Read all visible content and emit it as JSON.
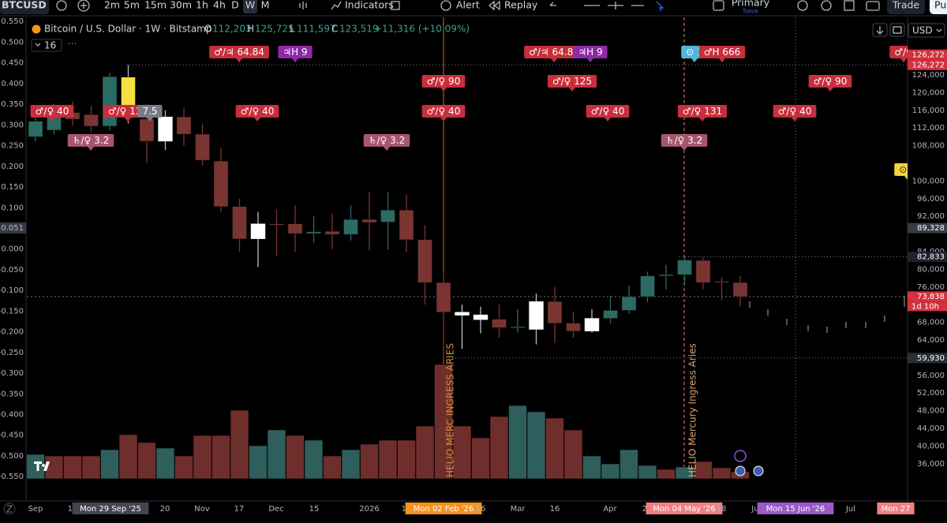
{
  "toolbar": {
    "symbol": "BTCUSD",
    "intervals": [
      "2m",
      "5m",
      "15m",
      "30m",
      "1h",
      "4h",
      "D",
      "W",
      "M"
    ],
    "active_interval": 7,
    "indicators": "Indicators",
    "alert": "Alert",
    "replay": "Replay",
    "layout": "Primary",
    "save": "Save",
    "trade": "Trade",
    "publish": "Pu"
  },
  "legend": {
    "title": "Bitcoin / U.S. Dollar · 1W · Bitstamp",
    "o_label": "O",
    "open": "112,203",
    "h_label": "H",
    "high": "125,725",
    "l_label": "L",
    "low": "111,597",
    "c_label": "C",
    "close": "123,519",
    "change": "+11,316 (+10.09%)",
    "indicator_length": "16"
  },
  "currency": "USD",
  "price_axis": {
    "ylim": [
      27929,
      137036
    ],
    "ticks": [
      {
        "value": 124000,
        "label": "124,000"
      },
      {
        "value": 120000,
        "label": "120,000"
      },
      {
        "value": 116000,
        "label": "116,000"
      },
      {
        "value": 112000,
        "label": "112,000"
      },
      {
        "value": 108000,
        "label": "108,000"
      },
      {
        "value": 100000,
        "label": "100,000"
      },
      {
        "value": 96000,
        "label": "96,000"
      },
      {
        "value": 92000,
        "label": "92,000"
      },
      {
        "value": 84000,
        "label": "84,000"
      },
      {
        "value": 80000,
        "label": "80,000"
      },
      {
        "value": 76000,
        "label": "76,000"
      },
      {
        "value": 68000,
        "label": "68,000"
      },
      {
        "value": 64000,
        "label": "64,000"
      },
      {
        "value": 56000,
        "label": "56,000"
      },
      {
        "value": 52000,
        "label": "52,000"
      },
      {
        "value": 48000,
        "label": "48,000"
      },
      {
        "value": 44000,
        "label": "44,000"
      },
      {
        "value": 40000,
        "label": "40,000"
      },
      {
        "value": 36000,
        "label": "36,000"
      }
    ],
    "badges": [
      {
        "value": 126272,
        "label": "126,272",
        "color": "#d3323f"
      },
      {
        "value": 126272,
        "label": "126,272",
        "color": "#d3323f"
      },
      {
        "value": 89328,
        "label": "89,328",
        "color": "#363a45"
      },
      {
        "value": 82833,
        "label": "82,833",
        "color": "#1e222d"
      },
      {
        "value": 73838,
        "label": "73,838",
        "color": "#d3323f"
      },
      {
        "value": 59930,
        "label": "59,930",
        "color": "#2a2e39"
      }
    ],
    "countdown": "1d 10h"
  },
  "indicator_axis": {
    "ylim": [
      -0.605,
      0.56
    ],
    "ticks": [
      {
        "value": 0.55,
        "label": "0.550"
      },
      {
        "value": 0.5,
        "label": "0.500"
      },
      {
        "value": 0.45,
        "label": "0.450"
      },
      {
        "value": 0.4,
        "label": "0.400"
      },
      {
        "value": 0.35,
        "label": "0.350"
      },
      {
        "value": 0.3,
        "label": "0.300"
      },
      {
        "value": 0.25,
        "label": "0.250"
      },
      {
        "value": 0.2,
        "label": "0.200"
      },
      {
        "value": 0.15,
        "label": "0.150"
      },
      {
        "value": 0.1,
        "label": "0.100"
      },
      {
        "value": 0,
        "label": "0.000"
      },
      {
        "value": -0.05,
        "label": "-0.050"
      },
      {
        "value": -0.1,
        "label": "-0.100"
      },
      {
        "value": -0.15,
        "label": "-0.150"
      },
      {
        "value": -0.2,
        "label": "-0.200"
      },
      {
        "value": -0.25,
        "label": "-0.250"
      },
      {
        "value": -0.3,
        "label": "-0.300"
      },
      {
        "value": -0.35,
        "label": "-0.350"
      },
      {
        "value": -0.4,
        "label": "-0.400"
      },
      {
        "value": -0.45,
        "label": "-0.450"
      },
      {
        "value": -0.5,
        "label": "-0.500"
      },
      {
        "value": -0.55,
        "label": "-0.550"
      }
    ],
    "badge": {
      "value": 0.051,
      "label": "0.051"
    }
  },
  "candles": {
    "open": [
      110000,
      111500,
      115500,
      115000,
      112400,
      123500,
      114000,
      109000,
      114500,
      110600,
      104500,
      94200,
      86900,
      90300,
      90300,
      88100,
      88600,
      87900,
      91300,
      90700,
      93400,
      86700,
      77000,
      69600,
      68600,
      68700,
      66800,
      66400,
      72700,
      67800,
      66000,
      68900,
      70700,
      73800,
      78500,
      78800,
      82000,
      77300,
      77000
    ],
    "high": [
      116000,
      117500,
      118000,
      117000,
      124500,
      126272,
      117500,
      116000,
      116500,
      113000,
      107500,
      96000,
      93000,
      93500,
      94500,
      92000,
      92500,
      94500,
      97500,
      97600,
      97000,
      90000,
      79500,
      72000,
      71500,
      72000,
      71000,
      74500,
      76000,
      70500,
      71000,
      74000,
      76400,
      79500,
      81000,
      82800,
      82833,
      78200,
      78500
    ],
    "low": [
      109000,
      110500,
      112500,
      111000,
      111500,
      113000,
      104000,
      107000,
      108000,
      103500,
      93000,
      84000,
      80500,
      83000,
      84000,
      86000,
      84500,
      86500,
      84300,
      84500,
      84000,
      72000,
      59930,
      62000,
      65500,
      64500,
      65700,
      63000,
      63300,
      64500,
      65700,
      67700,
      70000,
      72500,
      75500,
      76500,
      75500,
      73000,
      71700
    ],
    "close": [
      113500,
      115500,
      114000,
      112400,
      123600,
      115000,
      109000,
      114500,
      110600,
      104700,
      94200,
      86900,
      90300,
      90200,
      88100,
      88500,
      87900,
      91300,
      90600,
      93400,
      86700,
      77000,
      70300,
      70300,
      69700,
      66800,
      67000,
      72700,
      67800,
      66000,
      68900,
      70700,
      73800,
      78500,
      78800,
      82100,
      77000,
      77100,
      73838
    ],
    "colors": [
      "#2b6b63",
      "#2b6b63",
      "#7a3431",
      "#7a3431",
      "#2b6b63",
      "#f5e042",
      "#7a3431",
      "#ffffff",
      "#7a3431",
      "#7a3431",
      "#7a3431",
      "#7a3431",
      "#ffffff",
      "#7a3431",
      "#7a3431",
      "#2b6b63",
      "#7a3431",
      "#2b6b63",
      "#7a3431",
      "#2b6b63",
      "#7a3431",
      "#7a3431",
      "#7a3431",
      "#ffffff",
      "#ffffff",
      "#7a3431",
      "#2b6b63",
      "#ffffff",
      "#7a3431",
      "#7a3431",
      "#ffffff",
      "#2b6b63",
      "#2b6b63",
      "#2b6b63",
      "#2b6b63",
      "#2b6b63",
      "#7a3431",
      "#7a3431",
      "#7a3431"
    ]
  },
  "volume": {
    "vlim": [
      0,
      150
    ],
    "values": [
      31,
      29,
      29,
      29,
      37,
      56,
      46,
      39,
      29,
      55,
      55,
      87,
      42,
      62,
      55,
      49,
      29,
      37,
      44,
      49,
      49,
      67,
      145,
      67,
      52,
      79,
      93,
      85,
      77,
      62,
      29,
      19,
      37,
      17,
      12,
      15,
      22,
      14,
      9
    ],
    "colors": [
      "#2f5f5c",
      "#6e2e2c",
      "#6e2e2c",
      "#6e2e2c",
      "#2f5f5c",
      "#6e2e2c",
      "#6e2e2c",
      "#2f5f5c",
      "#6e2e2c",
      "#6e2e2c",
      "#6e2e2c",
      "#6e2e2c",
      "#2f5f5c",
      "#2f5f5c",
      "#6e2e2c",
      "#2f5f5c",
      "#6e2e2c",
      "#2f5f5c",
      "#6e2e2c",
      "#6e2e2c",
      "#6e2e2c",
      "#6e2e2c",
      "#6e2e2c",
      "#6e2e2c",
      "#6e2e2c",
      "#6e2e2c",
      "#2f5f5c",
      "#2f5f5c",
      "#6e2e2c",
      "#6e2e2c",
      "#2f5f5c",
      "#2f5f5c",
      "#2f5f5c",
      "#2f5f5c",
      "#6e2e2c",
      "#2f5f5c",
      "#6e2e2c",
      "#6e2e2c",
      "#6e2e2c"
    ]
  },
  "time_axis": [
    {
      "label": "Sep"
    },
    {
      "label": "15"
    },
    {
      "label": "Mon 29 Sep '25",
      "color": "#434651"
    },
    {
      "label": "20"
    },
    {
      "label": "Nov"
    },
    {
      "label": "17"
    },
    {
      "label": "Dec"
    },
    {
      "label": "15"
    },
    {
      "label": "2026"
    },
    {
      "label": "19"
    },
    {
      "label": "Mon 02 Feb '26",
      "color": "#f7931a"
    },
    {
      "label": "16"
    },
    {
      "label": "Mar"
    },
    {
      "label": "16"
    },
    {
      "label": "Apr"
    },
    {
      "label": "20"
    },
    {
      "label": "Mon 04 May '26",
      "color": "#f08080"
    },
    {
      "label": "18"
    },
    {
      "label": "Jun"
    },
    {
      "label": "Mon 15 Jun '26",
      "color": "#9c59c8"
    },
    {
      "label": "Jul"
    },
    {
      "label": "Mon 27",
      "color": "#f08080"
    }
  ],
  "annotations": [
    {
      "text": "♂/♀ 40",
      "color": "#c62f3b"
    },
    {
      "text": "♂/♀ 131",
      "color": "#c62f3b"
    },
    {
      "text": "7.5",
      "color": "#787b86"
    },
    {
      "text": "♄/♀ 3.2",
      "color": "#a8566e"
    },
    {
      "text": "♂/♃ 64.84",
      "color": "#c62f3b"
    },
    {
      "text": "♃H 9",
      "color": "#8e2aa8"
    },
    {
      "text": "♂/♀ 40",
      "color": "#c62f3b"
    },
    {
      "text": "♄/♀ 3.2",
      "color": "#a8566e"
    },
    {
      "text": "♂/♀ 90",
      "color": "#c62f3b"
    },
    {
      "text": "♂/♀ 40",
      "color": "#c62f3b"
    },
    {
      "text": "♂/♃ 64.84",
      "color": "#c62f3b"
    },
    {
      "text": "♃H 9",
      "color": "#8e2aa8"
    },
    {
      "text": "♂/♀ 125",
      "color": "#c62f3b"
    },
    {
      "text": "♂/♀ 40",
      "color": "#c62f3b"
    },
    {
      "text": "⊙ 1",
      "color": "#4fb8dc"
    },
    {
      "text": "♂H 666",
      "color": "#c62f3b"
    },
    {
      "text": "♂/♀ 131",
      "color": "#c62f3b"
    },
    {
      "text": "♄/♀ 3.2",
      "color": "#a8566e"
    },
    {
      "text": "♂/♀ 40",
      "color": "#c62f3b"
    },
    {
      "text": "♂/♀ 90",
      "color": "#c62f3b"
    },
    {
      "text": "♂/♀",
      "color": "#c62f3b"
    },
    {
      "text": "⊙ 0",
      "color": "#f5d23a"
    }
  ],
  "event_labels": [
    "HELIO MERC INGRESS ARIES",
    "HELIO Mercury Ingress Aries"
  ]
}
